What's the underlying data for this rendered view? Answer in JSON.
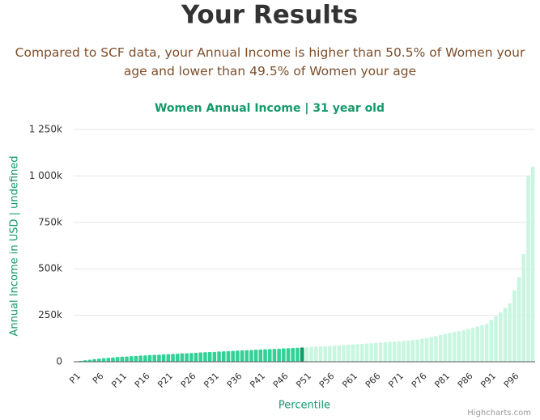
{
  "page_title": "Your Results",
  "subtitle": "Compared to SCF data, your Annual Income is higher than 50.5% of Women your age and lower than 49.5% of Women your age",
  "credit": "Highcharts.com",
  "chart_data": {
    "type": "bar",
    "title": "Women Annual Income | 31 year old",
    "x_label": "Percentile",
    "y_label": "Annual Income in USD | undefined",
    "categories": [
      "P1",
      null,
      null,
      null,
      null,
      "P6",
      null,
      null,
      null,
      null,
      "P11",
      null,
      null,
      null,
      null,
      "P16",
      null,
      null,
      null,
      null,
      "P21",
      null,
      null,
      null,
      null,
      "P26",
      null,
      null,
      null,
      null,
      "P31",
      null,
      null,
      null,
      null,
      "P36",
      null,
      null,
      null,
      null,
      "P41",
      null,
      null,
      null,
      null,
      "P46",
      null,
      null,
      null,
      null,
      "P51",
      null,
      null,
      null,
      null,
      "P56",
      null,
      null,
      null,
      null,
      "P61",
      null,
      null,
      null,
      null,
      "P66",
      null,
      null,
      null,
      null,
      "P71",
      null,
      null,
      null,
      null,
      "P76",
      null,
      null,
      null,
      null,
      "P81",
      null,
      null,
      null,
      null,
      "P86",
      null,
      null,
      null,
      null,
      "P91",
      null,
      null,
      null,
      null,
      "P96",
      null,
      null,
      null,
      null
    ],
    "values": [
      2000,
      5000,
      8000,
      11000,
      14000,
      17000,
      19000,
      21000,
      23000,
      25000,
      27000,
      28000,
      30000,
      31000,
      33000,
      34000,
      36000,
      37000,
      38000,
      40000,
      41000,
      42000,
      43000,
      45000,
      46000,
      47000,
      48000,
      50000,
      51000,
      52000,
      53000,
      55000,
      56000,
      57000,
      58000,
      60000,
      61000,
      62000,
      63000,
      65000,
      66000,
      67000,
      68000,
      69000,
      70000,
      72000,
      73000,
      74000,
      75000,
      77000,
      78000,
      80000,
      81000,
      82000,
      84000,
      85000,
      87000,
      88000,
      90000,
      92000,
      93000,
      95000,
      96000,
      98000,
      100000,
      101000,
      103000,
      105000,
      107000,
      108000,
      110000,
      112000,
      114000,
      117000,
      120000,
      124000,
      128000,
      133000,
      138000,
      145000,
      150000,
      155000,
      160000,
      165000,
      170000,
      176000,
      182000,
      190000,
      198000,
      205000,
      225000,
      245000,
      265000,
      290000,
      315000,
      385000,
      455000,
      580000,
      1000000,
      1050000
    ],
    "color": "#31d197",
    "highlight": {
      "index": 49,
      "color": "#14976b"
    },
    "upper_color": "#c8f6e1",
    "ylim": [
      0,
      1250000
    ],
    "yticks": [
      0,
      {
        "value": 250000,
        "label": "250k"
      },
      {
        "value": 500000,
        "label": "500k"
      },
      {
        "value": 750000,
        "label": "750k"
      },
      {
        "value": 1000000,
        "label": "1 000k"
      },
      {
        "value": 1250000,
        "label": "1 250k"
      }
    ],
    "grid": true
  }
}
